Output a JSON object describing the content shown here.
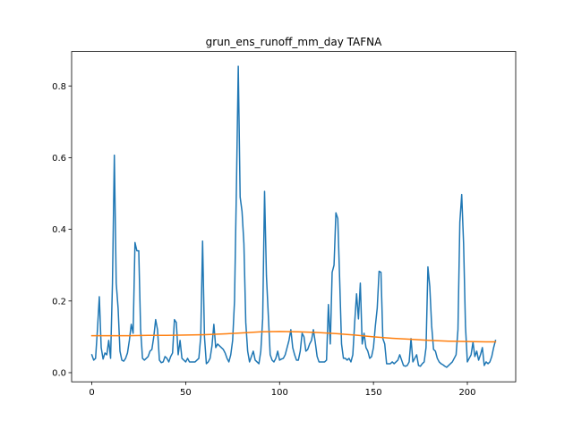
{
  "chart_data": {
    "type": "line",
    "title": "grun_ens_runoff_mm_day TAFNA",
    "xlabel": "",
    "ylabel": "",
    "xlim": [
      -10.75,
      225.75
    ],
    "ylim": [
      -0.0255,
      0.8962
    ],
    "x_ticks": [
      0,
      50,
      100,
      150,
      200
    ],
    "y_ticks": [
      0.0,
      0.2,
      0.4,
      0.6,
      0.8
    ],
    "x_tick_labels": [
      "0",
      "50",
      "100",
      "150",
      "200"
    ],
    "y_tick_labels": [
      "0.0",
      "0.2",
      "0.4",
      "0.6",
      "0.8"
    ],
    "grid": false,
    "series": [
      {
        "color": "#1f77b4",
        "x": [
          0,
          1,
          2,
          3,
          4,
          5,
          6,
          7,
          8,
          9,
          10,
          11,
          12,
          13,
          14,
          15,
          16,
          17,
          18,
          19,
          20,
          21,
          22,
          23,
          24,
          25,
          26,
          27,
          28,
          29,
          30,
          31,
          32,
          33,
          34,
          35,
          36,
          37,
          38,
          39,
          40,
          41,
          42,
          43,
          44,
          45,
          46,
          47,
          48,
          49,
          50,
          51,
          52,
          53,
          54,
          55,
          56,
          57,
          58,
          59,
          60,
          61,
          62,
          63,
          64,
          65,
          66,
          67,
          68,
          69,
          70,
          71,
          72,
          73,
          74,
          75,
          76,
          77,
          78,
          79,
          80,
          81,
          82,
          83,
          84,
          85,
          86,
          87,
          88,
          89,
          90,
          91,
          92,
          93,
          94,
          95,
          96,
          97,
          98,
          99,
          100,
          101,
          102,
          103,
          104,
          105,
          106,
          107,
          108,
          109,
          110,
          111,
          112,
          113,
          114,
          115,
          116,
          117,
          118,
          119,
          120,
          121,
          122,
          123,
          124,
          125,
          126,
          127,
          128,
          129,
          130,
          131,
          132,
          133,
          134,
          135,
          136,
          137,
          138,
          139,
          140,
          141,
          142,
          143,
          144,
          145,
          146,
          147,
          148,
          149,
          150,
          151,
          152,
          153,
          154,
          155,
          156,
          157,
          158,
          159,
          160,
          161,
          162,
          163,
          164,
          165,
          166,
          167,
          168,
          169,
          170,
          171,
          172,
          173,
          174,
          175,
          176,
          177,
          178,
          179,
          180,
          181,
          182,
          183,
          184,
          185,
          186,
          187,
          188,
          189,
          190,
          191,
          192,
          193,
          194,
          195,
          196,
          197,
          198,
          199,
          200,
          201,
          202,
          203,
          204,
          205,
          206,
          207,
          208,
          209,
          210,
          211,
          212,
          213,
          214,
          215
        ],
        "values": [
          0.05,
          0.035,
          0.04,
          0.12,
          0.212,
          0.07,
          0.038,
          0.055,
          0.05,
          0.09,
          0.04,
          0.25,
          0.607,
          0.25,
          0.18,
          0.06,
          0.035,
          0.032,
          0.04,
          0.055,
          0.09,
          0.135,
          0.11,
          0.363,
          0.34,
          0.34,
          0.12,
          0.04,
          0.035,
          0.04,
          0.045,
          0.06,
          0.065,
          0.1,
          0.148,
          0.12,
          0.035,
          0.028,
          0.03,
          0.045,
          0.04,
          0.03,
          0.045,
          0.055,
          0.148,
          0.14,
          0.05,
          0.09,
          0.04,
          0.035,
          0.03,
          0.04,
          0.03,
          0.03,
          0.03,
          0.03,
          0.035,
          0.04,
          0.1,
          0.367,
          0.1,
          0.025,
          0.03,
          0.04,
          0.075,
          0.135,
          0.07,
          0.08,
          0.075,
          0.07,
          0.065,
          0.055,
          0.04,
          0.03,
          0.05,
          0.09,
          0.2,
          0.51,
          0.855,
          0.49,
          0.45,
          0.36,
          0.14,
          0.06,
          0.03,
          0.045,
          0.06,
          0.035,
          0.03,
          0.025,
          0.06,
          0.15,
          0.506,
          0.27,
          0.16,
          0.05,
          0.035,
          0.03,
          0.04,
          0.06,
          0.035,
          0.038,
          0.04,
          0.05,
          0.07,
          0.09,
          0.12,
          0.07,
          0.05,
          0.035,
          0.035,
          0.06,
          0.11,
          0.1,
          0.06,
          0.065,
          0.08,
          0.09,
          0.12,
          0.085,
          0.045,
          0.03,
          0.03,
          0.03,
          0.03,
          0.035,
          0.19,
          0.08,
          0.28,
          0.3,
          0.446,
          0.43,
          0.26,
          0.08,
          0.04,
          0.04,
          0.035,
          0.04,
          0.03,
          0.05,
          0.14,
          0.22,
          0.15,
          0.25,
          0.08,
          0.11,
          0.07,
          0.06,
          0.04,
          0.045,
          0.07,
          0.13,
          0.18,
          0.283,
          0.28,
          0.095,
          0.08,
          0.025,
          0.025,
          0.025,
          0.03,
          0.025,
          0.03,
          0.035,
          0.05,
          0.035,
          0.02,
          0.018,
          0.02,
          0.03,
          0.095,
          0.03,
          0.04,
          0.05,
          0.02,
          0.018,
          0.025,
          0.03,
          0.07,
          0.295,
          0.24,
          0.13,
          0.065,
          0.06,
          0.04,
          0.03,
          0.025,
          0.022,
          0.018,
          0.015,
          0.02,
          0.025,
          0.03,
          0.04,
          0.05,
          0.12,
          0.42,
          0.497,
          0.36,
          0.13,
          0.03,
          0.04,
          0.05,
          0.085,
          0.045,
          0.06,
          0.035,
          0.05,
          0.07,
          0.02,
          0.03,
          0.025,
          0.03,
          0.045,
          0.07,
          0.09
        ]
      },
      {
        "color": "#ff7f0e",
        "x": [
          0,
          10,
          20,
          30,
          40,
          50,
          60,
          70,
          80,
          90,
          100,
          110,
          120,
          130,
          140,
          150,
          160,
          170,
          180,
          190,
          200,
          210,
          215
        ],
        "values": [
          0.103,
          0.103,
          0.103,
          0.104,
          0.104,
          0.105,
          0.106,
          0.108,
          0.111,
          0.114,
          0.115,
          0.114,
          0.112,
          0.109,
          0.105,
          0.1,
          0.096,
          0.093,
          0.09,
          0.088,
          0.087,
          0.086,
          0.086
        ]
      }
    ]
  }
}
